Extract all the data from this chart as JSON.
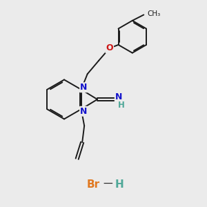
{
  "background_color": "#ebebeb",
  "br_color": "#e07820",
  "h_color": "#4fa898",
  "n_color": "#1414cc",
  "o_color": "#cc1414",
  "bond_color": "#1a1a1a",
  "bond_width": 1.4,
  "figsize": [
    3.0,
    3.0
  ],
  "dpi": 100,
  "xlim": [
    0,
    10
  ],
  "ylim": [
    0,
    10
  ]
}
